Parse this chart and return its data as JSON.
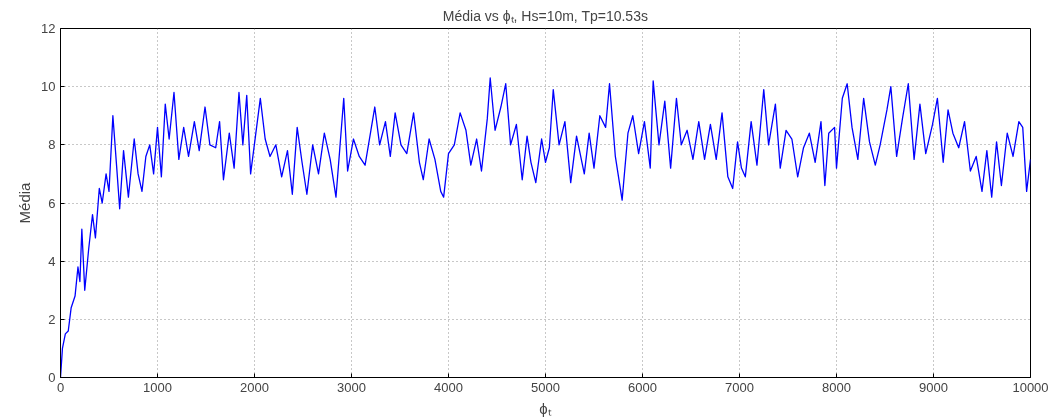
{
  "chart_data": {
    "type": "line",
    "title": "Média vs ϕₜ, Hs=10m, Tp=10.53s",
    "xlabel": "ϕₜ",
    "ylabel": "Média",
    "xlim": [
      0,
      10000
    ],
    "ylim": [
      0,
      12
    ],
    "xticks": [
      0,
      1000,
      2000,
      3000,
      4000,
      5000,
      6000,
      7000,
      8000,
      9000,
      10000
    ],
    "yticks": [
      0,
      2,
      4,
      6,
      8,
      10,
      12
    ],
    "grid": true,
    "marker": "none",
    "line_style": "solid",
    "series": [
      {
        "color": "#0000ff",
        "x": [
          0,
          20,
          50,
          80,
          110,
          150,
          180,
          200,
          220,
          250,
          290,
          330,
          360,
          400,
          430,
          470,
          500,
          540,
          580,
          610,
          650,
          700,
          760,
          800,
          840,
          880,
          920,
          960,
          1000,
          1040,
          1080,
          1120,
          1170,
          1220,
          1270,
          1320,
          1380,
          1430,
          1490,
          1540,
          1600,
          1640,
          1680,
          1740,
          1790,
          1840,
          1880,
          1920,
          1960,
          2010,
          2060,
          2110,
          2160,
          2220,
          2280,
          2340,
          2390,
          2440,
          2490,
          2540,
          2600,
          2660,
          2720,
          2780,
          2840,
          2880,
          2920,
          2960,
          3020,
          3080,
          3140,
          3200,
          3240,
          3290,
          3350,
          3400,
          3450,
          3510,
          3570,
          3640,
          3700,
          3740,
          3800,
          3860,
          3920,
          3950,
          4000,
          4060,
          4120,
          4180,
          4230,
          4290,
          4340,
          4400,
          4430,
          4480,
          4540,
          4590,
          4640,
          4700,
          4760,
          4810,
          4850,
          4900,
          4960,
          5000,
          5040,
          5080,
          5140,
          5200,
          5260,
          5320,
          5400,
          5450,
          5500,
          5560,
          5620,
          5660,
          5720,
          5790,
          5850,
          5900,
          5960,
          6020,
          6080,
          6110,
          6170,
          6230,
          6290,
          6350,
          6400,
          6460,
          6520,
          6580,
          6640,
          6700,
          6760,
          6820,
          6880,
          6930,
          6980,
          7020,
          7060,
          7120,
          7180,
          7250,
          7300,
          7370,
          7420,
          7480,
          7540,
          7600,
          7660,
          7720,
          7780,
          7840,
          7880,
          7920,
          7980,
          8000,
          8060,
          8110,
          8160,
          8220,
          8280,
          8340,
          8400,
          8450,
          8520,
          8560,
          8620,
          8680,
          8740,
          8800,
          8860,
          8920,
          8990,
          9040,
          9100,
          9150,
          9200,
          9260,
          9320,
          9380,
          9440,
          9500,
          9550,
          9600,
          9650,
          9700,
          9760,
          9820,
          9880,
          9920,
          9960,
          10000
        ],
        "values": [
          0,
          1.0,
          1.5,
          1.6,
          2.4,
          2.8,
          3.8,
          3.3,
          5.1,
          3.0,
          4.4,
          5.6,
          4.8,
          6.5,
          6.0,
          7.0,
          6.4,
          9.0,
          7.2,
          5.8,
          7.8,
          6.2,
          8.2,
          7.0,
          6.4,
          7.6,
          8.0,
          7.0,
          8.6,
          6.9,
          9.4,
          8.2,
          9.8,
          7.5,
          8.6,
          7.6,
          8.8,
          7.8,
          9.3,
          8.0,
          7.9,
          8.8,
          6.8,
          8.4,
          7.2,
          9.8,
          8.0,
          9.7,
          7.0,
          8.3,
          9.6,
          8.2,
          7.6,
          8.0,
          6.9,
          7.8,
          6.3,
          8.6,
          7.4,
          6.3,
          8.0,
          7.0,
          8.4,
          7.5,
          6.2,
          7.9,
          9.6,
          7.1,
          8.2,
          7.6,
          7.3,
          8.5,
          9.3,
          8.0,
          8.8,
          7.6,
          9.1,
          8.0,
          7.7,
          9.1,
          7.4,
          6.8,
          8.2,
          7.5,
          6.4,
          6.2,
          7.7,
          8.0,
          9.1,
          8.5,
          7.3,
          8.2,
          7.1,
          8.9,
          10.3,
          8.5,
          9.3,
          10.1,
          8.0,
          8.7,
          6.8,
          8.3,
          7.4,
          6.7,
          8.2,
          7.4,
          7.9,
          9.9,
          8.0,
          8.8,
          6.7,
          8.3,
          7.0,
          8.4,
          7.2,
          9.0,
          8.6,
          10.1,
          7.6,
          6.1,
          8.4,
          9.0,
          7.7,
          8.8,
          7.2,
          10.2,
          8.0,
          9.5,
          7.2,
          9.6,
          8.0,
          8.5,
          7.5,
          8.8,
          7.5,
          8.7,
          7.5,
          9.1,
          6.9,
          6.5,
          8.1,
          7.2,
          6.9,
          8.8,
          7.3,
          9.9,
          8.0,
          9.4,
          7.2,
          8.5,
          8.2,
          6.9,
          7.9,
          8.4,
          7.4,
          8.8,
          6.6,
          8.4,
          8.6,
          7.2,
          9.6,
          10.1,
          8.6,
          7.5,
          9.6,
          8.1,
          7.3,
          8.0,
          9.2,
          10.0,
          7.6,
          8.9,
          10.1,
          7.5,
          9.4,
          7.7,
          8.7,
          9.6,
          7.4,
          9.2,
          8.4,
          7.9,
          8.8,
          7.1,
          7.6,
          6.4,
          7.8,
          6.2,
          8.1,
          6.6,
          8.4,
          7.6,
          8.8,
          8.6,
          6.4,
          7.5
        ]
      }
    ]
  }
}
